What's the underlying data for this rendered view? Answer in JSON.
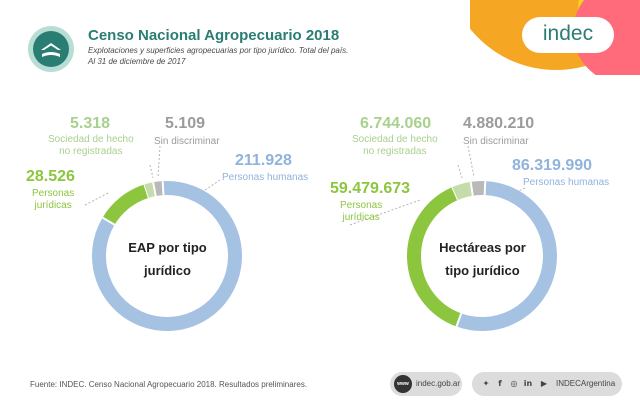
{
  "header": {
    "title": "Censo Nacional Agropecuario 2018",
    "subtitle_line1": "Explotaciones y superficies agropecuarias por tipo jurídico. Total del país.",
    "subtitle_line2": "Al 31 de diciembre de 2017",
    "brand": "indec"
  },
  "colors": {
    "teal": "#2a7d73",
    "blue": "#a6c2e3",
    "green": "#8cc63f",
    "gray": "#b9b9b9",
    "sage": "#c3dca9",
    "pink": "#ff6b7a",
    "orange": "#f5a623",
    "yellow": "#f7d51d"
  },
  "chart_data": [
    {
      "type": "pie",
      "title": "EAP por tipo jurídico",
      "center_line1": "EAP por tipo",
      "center_line2": "jurídico",
      "categories": [
        "Personas humanas",
        "Personas jurídicas",
        "Sociedad de hecho no registradas",
        "Sin discriminar"
      ],
      "values": [
        211928,
        28526,
        5318,
        5109
      ],
      "display": [
        "211.928",
        "28.526",
        "5.318",
        "5.109"
      ]
    },
    {
      "type": "pie",
      "title": "Hectáreas por tipo jurídico",
      "center_line1": "Hectáreas por",
      "center_line2": "tipo jurídico",
      "categories": [
        "Personas humanas",
        "Personas jurídicas",
        "Sociedad de hecho no registradas",
        "Sin discriminar"
      ],
      "values": [
        86319990,
        59479673,
        6744060,
        4880210
      ],
      "display": [
        "86.319.990",
        "59.479.673",
        "6.744.060",
        "4.880.210"
      ]
    }
  ],
  "labels": {
    "humanas": "Personas humanas",
    "juridicas_l1": "Personas",
    "juridicas_l2": "jurídicas",
    "sociedad_l1": "Sociedad de hecho",
    "sociedad_l2": "no registradas",
    "sin_disc": "Sin discriminar"
  },
  "footer": {
    "source": "Fuente: INDEC. Censo Nacional Agropecuario 2018. Resultados preliminares.",
    "web_label": "indec.gob.ar",
    "www": "www",
    "social_handle": "INDECArgentina"
  }
}
